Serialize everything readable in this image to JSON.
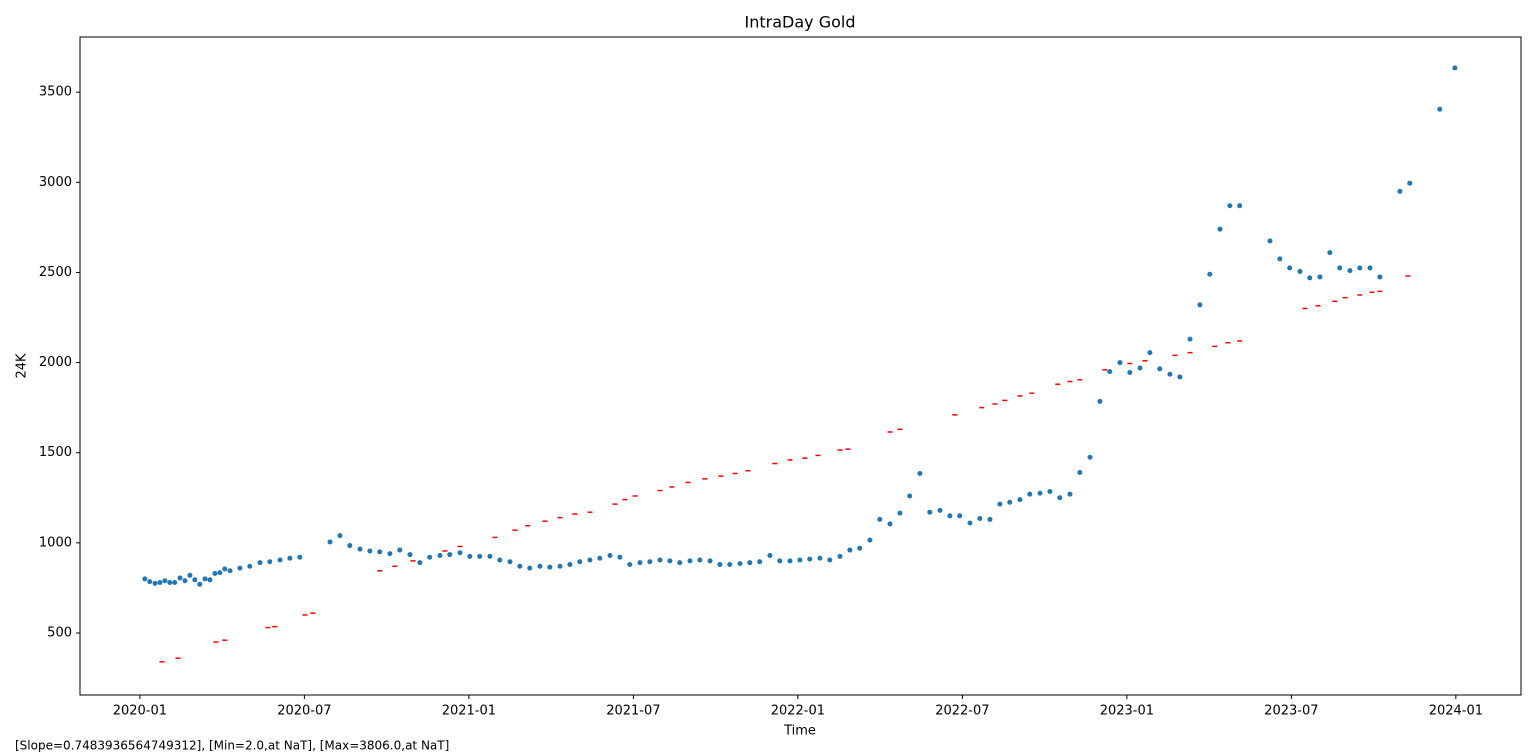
{
  "chart_data": {
    "type": "scatter",
    "title": "IntraDay Gold",
    "xlabel": "Time",
    "ylabel": "24K",
    "footnote": "[Slope=0.7483936564749312], [Min=2.0,at NaT], [Max=3806.0,at NaT]",
    "xlim": [
      2019.818,
      2024.198
    ],
    "ylim": [
      156,
      3806
    ],
    "xticks": [
      {
        "value": 2020.0,
        "label": "2020-01"
      },
      {
        "value": 2020.5,
        "label": "2020-07"
      },
      {
        "value": 2021.0,
        "label": "2021-01"
      },
      {
        "value": 2021.5,
        "label": "2021-07"
      },
      {
        "value": 2022.0,
        "label": "2022-01"
      },
      {
        "value": 2022.5,
        "label": "2022-07"
      },
      {
        "value": 2023.0,
        "label": "2023-01"
      },
      {
        "value": 2023.5,
        "label": "2023-07"
      },
      {
        "value": 2024.0,
        "label": "2024-01"
      }
    ],
    "yticks": [
      500,
      1000,
      1500,
      2000,
      2500,
      3000,
      3500
    ],
    "series": [
      {
        "color": "#1f77b4",
        "marker": "circle",
        "x": [
          2020.015,
          2020.03,
          2020.046,
          2020.061,
          2020.076,
          2020.091,
          2020.106,
          2020.122,
          2020.137,
          2020.152,
          2020.167,
          2020.182,
          2020.198,
          2020.213,
          2020.228,
          2020.243,
          2020.258,
          2020.274,
          2020.304,
          2020.334,
          2020.365,
          2020.395,
          2020.426,
          2020.456,
          2020.486,
          2020.578,
          2020.608,
          2020.638,
          2020.669,
          2020.699,
          2020.729,
          2020.76,
          2020.79,
          2020.821,
          2020.851,
          2020.881,
          2020.912,
          2020.942,
          2020.973,
          2021.003,
          2021.033,
          2021.064,
          2021.094,
          2021.125,
          2021.155,
          2021.185,
          2021.216,
          2021.246,
          2021.277,
          2021.307,
          2021.337,
          2021.368,
          2021.398,
          2021.429,
          2021.459,
          2021.489,
          2021.52,
          2021.55,
          2021.581,
          2021.611,
          2021.641,
          2021.672,
          2021.702,
          2021.733,
          2021.763,
          2021.793,
          2021.824,
          2021.854,
          2021.884,
          2021.915,
          2021.945,
          2021.976,
          2022.006,
          2022.036,
          2022.067,
          2022.097,
          2022.128,
          2022.158,
          2022.188,
          2022.219,
          2022.249,
          2022.28,
          2022.31,
          2022.34,
          2022.371,
          2022.401,
          2022.432,
          2022.462,
          2022.492,
          2022.523,
          2022.553,
          2022.584,
          2022.614,
          2022.644,
          2022.675,
          2022.705,
          2022.736,
          2022.766,
          2022.796,
          2022.827,
          2022.857,
          2022.888,
          2022.918,
          2022.948,
          2022.979,
          2023.009,
          2023.04,
          2023.07,
          2023.1,
          2023.131,
          2023.161,
          2023.192,
          2023.222,
          2023.252,
          2023.283,
          2023.313,
          2023.343,
          2023.435,
          2023.465,
          2023.495,
          2023.526,
          2023.556,
          2023.587,
          2023.617,
          2023.647,
          2023.678,
          2023.708,
          2023.739,
          2023.769,
          2023.83,
          2023.86,
          2023.951,
          2023.997
        ],
        "values": [
          800,
          785,
          775,
          780,
          790,
          780,
          780,
          805,
          790,
          820,
          795,
          770,
          800,
          795,
          830,
          835,
          855,
          845,
          860,
          870,
          890,
          895,
          905,
          915,
          920,
          1005,
          1040,
          985,
          965,
          955,
          950,
          940,
          960,
          935,
          890,
          920,
          930,
          935,
          945,
          925,
          925,
          925,
          905,
          895,
          870,
          860,
          870,
          865,
          870,
          880,
          895,
          905,
          915,
          930,
          920,
          880,
          890,
          895,
          905,
          900,
          890,
          900,
          905,
          900,
          880,
          880,
          885,
          890,
          895,
          930,
          900,
          900,
          905,
          910,
          915,
          905,
          925,
          960,
          970,
          1015,
          1130,
          1105,
          1165,
          1260,
          1385,
          1170,
          1180,
          1150,
          1150,
          1110,
          1135,
          1130,
          1215,
          1225,
          1240,
          1270,
          1275,
          1285,
          1250,
          1270,
          1390,
          1475,
          1785,
          1950,
          2000,
          1945,
          1970,
          2055,
          1965,
          1935,
          1920,
          2130,
          2320,
          2490,
          2740,
          2870,
          2870,
          2675,
          2575,
          2525,
          2505,
          2470,
          2475,
          2610,
          2525,
          2510,
          2525,
          2525,
          2475,
          2950,
          2995,
          3405,
          3635
        ]
      },
      {
        "color": "#ff0000",
        "marker": "dash",
        "x": [
          2020.067,
          2020.116,
          2020.231,
          2020.258,
          2020.389,
          2020.41,
          2020.502,
          2020.526,
          2020.729,
          2020.775,
          2020.83,
          2020.927,
          2020.973,
          2021.079,
          2021.14,
          2021.179,
          2021.231,
          2021.277,
          2021.322,
          2021.368,
          2021.444,
          2021.474,
          2021.505,
          2021.581,
          2021.617,
          2021.666,
          2021.717,
          2021.766,
          2021.809,
          2021.848,
          2021.93,
          2021.976,
          2022.021,
          2022.061,
          2022.128,
          2022.152,
          2022.28,
          2022.31,
          2022.477,
          2022.559,
          2022.599,
          2022.629,
          2022.675,
          2022.711,
          2022.79,
          2022.827,
          2022.857,
          2022.933,
          2023.009,
          2023.055,
          2023.146,
          2023.192,
          2023.267,
          2023.307,
          2023.343,
          2023.541,
          2023.581,
          2023.632,
          2023.663,
          2023.708,
          2023.745,
          2023.769,
          2023.854
        ],
        "values": [
          340,
          360,
          450,
          460,
          530,
          535,
          600,
          610,
          845,
          870,
          900,
          955,
          980,
          1030,
          1070,
          1095,
          1120,
          1140,
          1160,
          1170,
          1215,
          1240,
          1260,
          1290,
          1310,
          1335,
          1355,
          1370,
          1385,
          1400,
          1440,
          1460,
          1470,
          1485,
          1515,
          1520,
          1615,
          1630,
          1710,
          1750,
          1770,
          1790,
          1815,
          1830,
          1880,
          1895,
          1905,
          1960,
          1995,
          2010,
          2040,
          2055,
          2090,
          2110,
          2120,
          2300,
          2315,
          2340,
          2360,
          2375,
          2390,
          2395,
          2480
        ]
      }
    ]
  }
}
